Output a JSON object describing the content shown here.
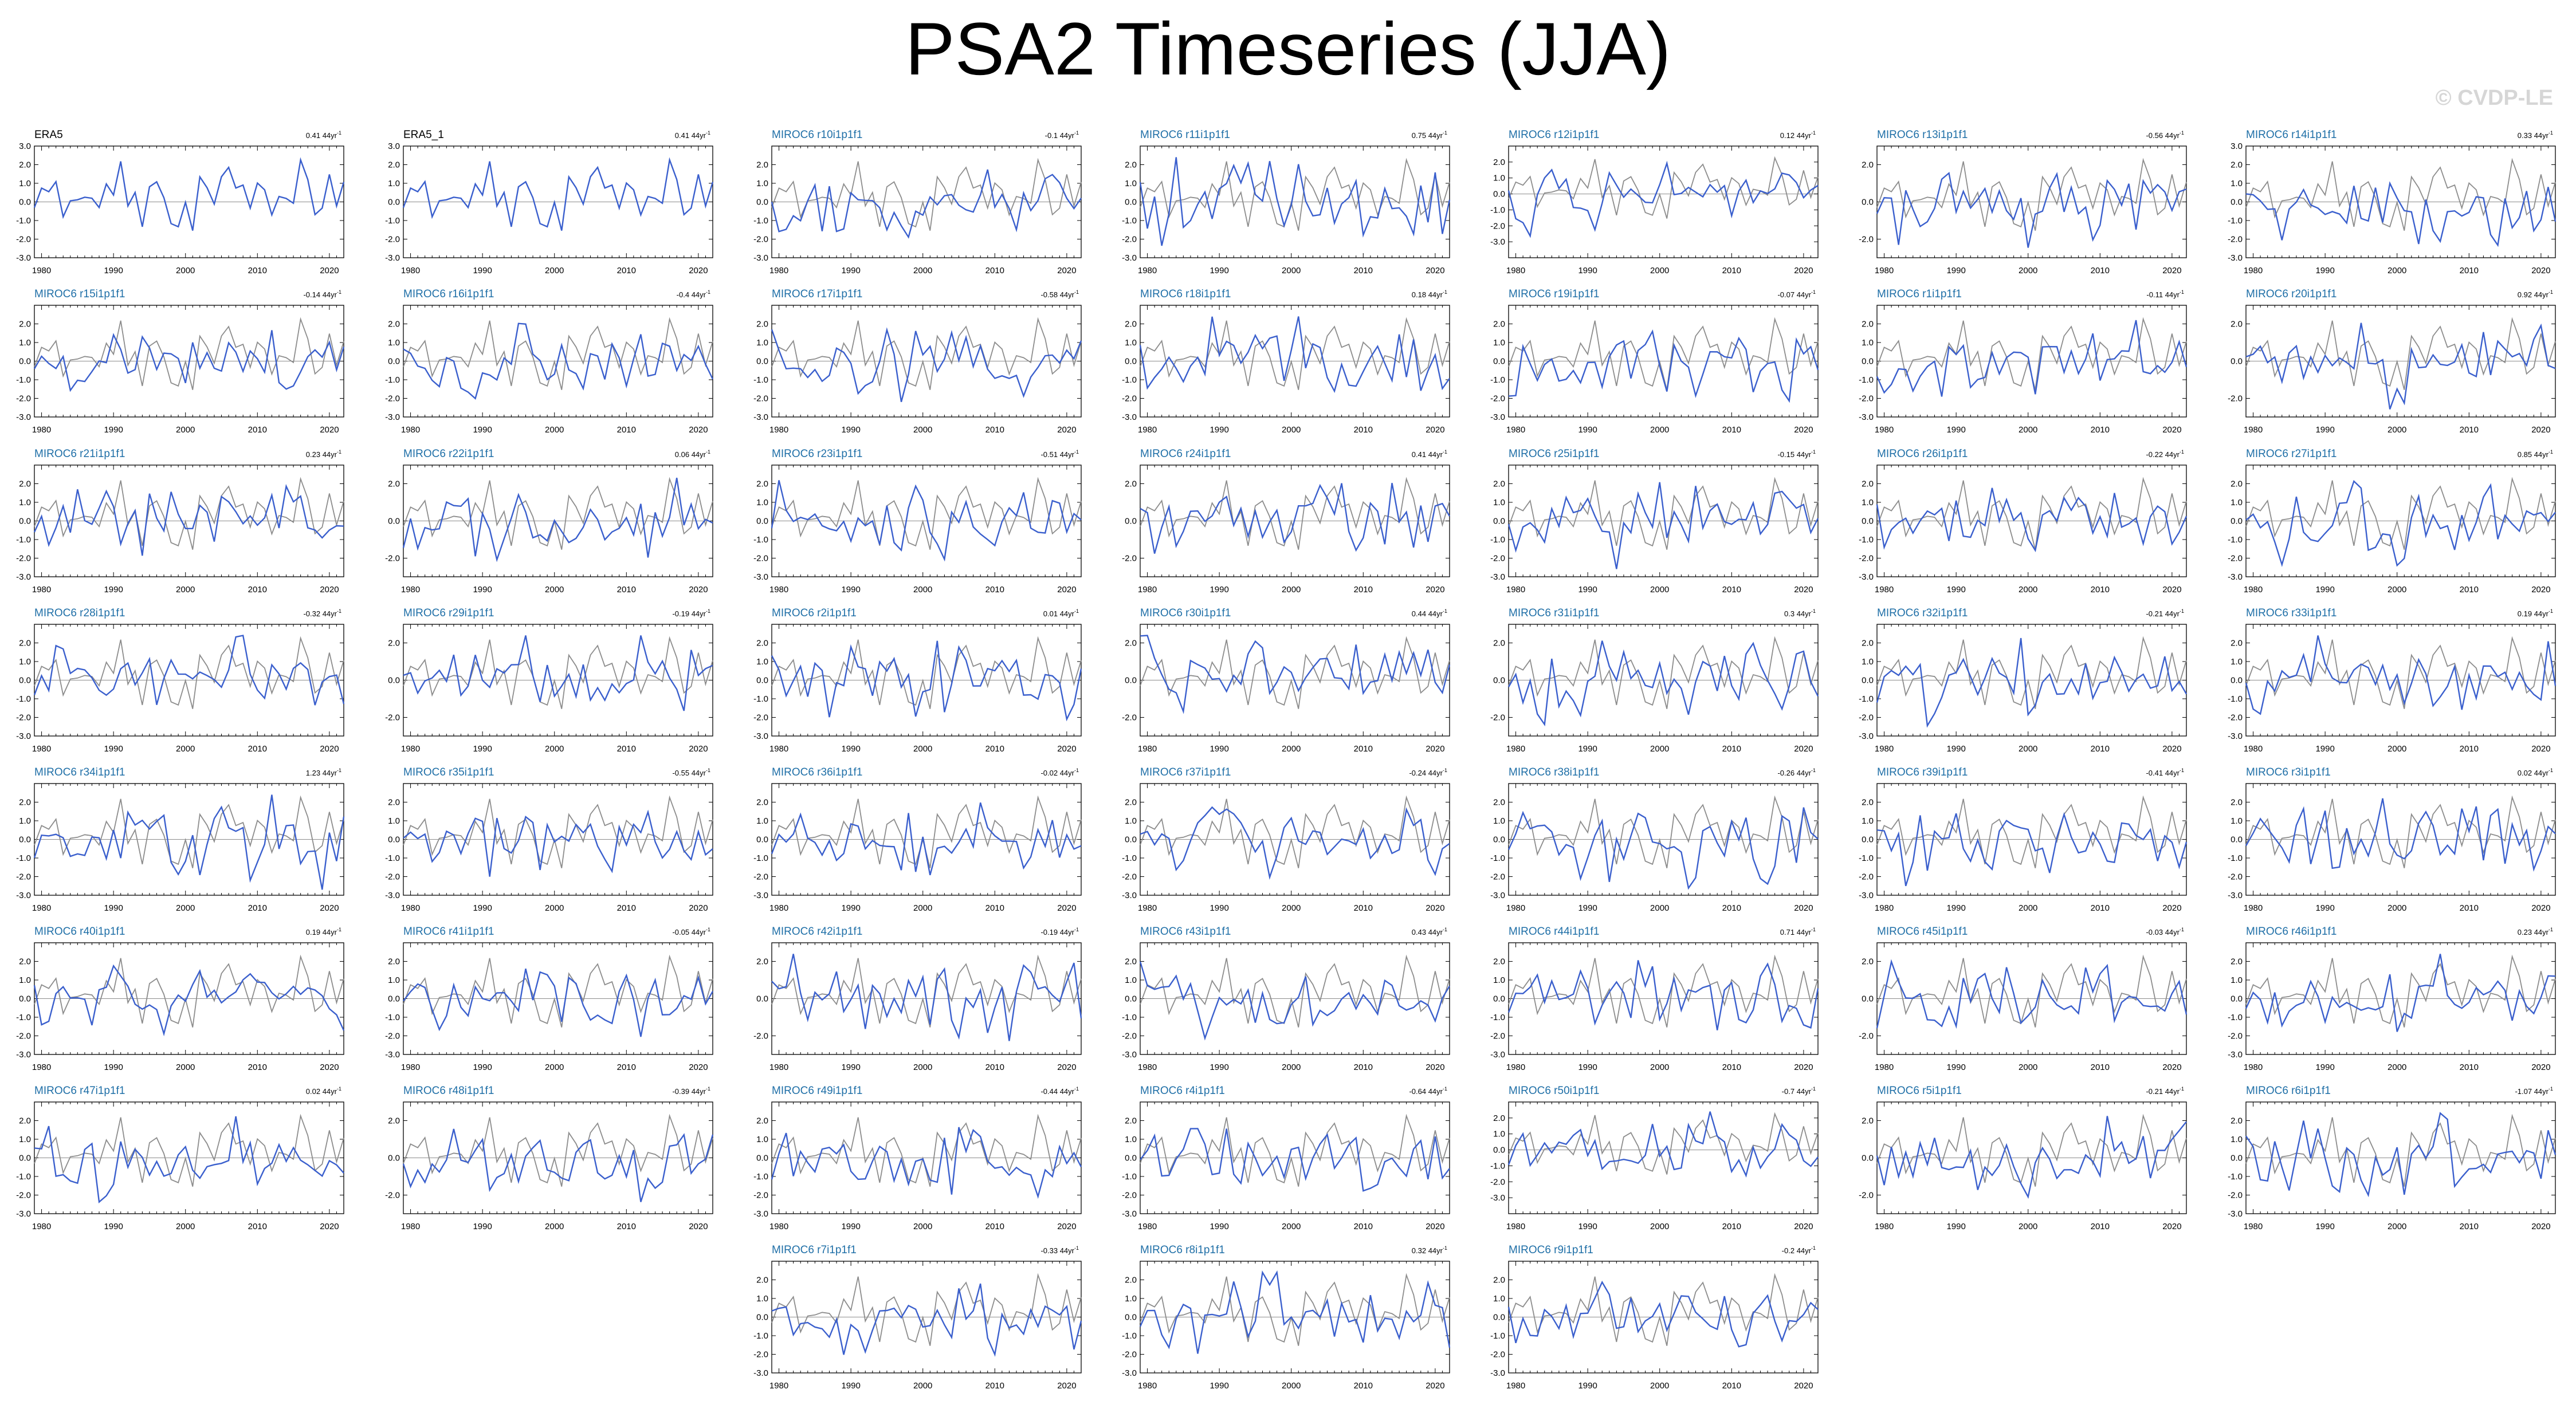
{
  "title": "PSA2 Timeseries (JJA)",
  "watermark": "© CVDP-LE",
  "colors": {
    "primary": "#3a5fcd",
    "reference": "#8c8c8c",
    "zero": "#8c8c8c",
    "obs_title": "#000000",
    "member_title": "#1f6fa7"
  },
  "chart_data": {
    "type": "line",
    "x_ticks": [
      1980,
      1990,
      2000,
      2010,
      2020
    ],
    "xlim": [
      1979,
      2022
    ],
    "trend_unit": "44yr",
    "panels": [
      {
        "title": "ERA5",
        "trend": "0.41",
        "obs": true,
        "ylim": [
          -3,
          3
        ],
        "yticks": [
          "3.0",
          "2.0",
          "1.0",
          "0.0",
          "-1.0",
          "-2.0",
          "-3.0"
        ]
      },
      {
        "title": "ERA5_1",
        "trend": "0.41",
        "obs": true,
        "ylim": [
          -3,
          3
        ],
        "yticks": [
          "3.0",
          "2.0",
          "1.0",
          "0.0",
          "-1.0",
          "-2.0",
          "-3.0"
        ]
      },
      {
        "title": "MIROC6 r10i1p1f1",
        "trend": "-0.1",
        "ylim": [
          -3,
          3
        ],
        "yticks": [
          "2.0",
          "1.0",
          "0.0",
          "-1.0",
          "-2.0",
          "-3.0"
        ]
      },
      {
        "title": "MIROC6 r11i1p1f1",
        "trend": "0.75",
        "ylim": [
          -3,
          3
        ],
        "yticks": [
          "2.0",
          "1.0",
          "0.0",
          "-1.0",
          "-2.0",
          "-3.0"
        ]
      },
      {
        "title": "MIROC6 r12i1p1f1",
        "trend": "0.12",
        "ylim": [
          -4,
          3
        ],
        "yticks": [
          "2.0",
          "1.0",
          "0.0",
          "-1.0",
          "-2.0",
          "-3.0"
        ]
      },
      {
        "title": "MIROC6 r13i1p1f1",
        "trend": "-0.56",
        "ylim": [
          -3,
          3
        ],
        "yticks": [
          "2.0",
          "0.0",
          "-2.0"
        ]
      },
      {
        "title": "MIROC6 r14i1p1f1",
        "trend": "0.33",
        "ylim": [
          -3,
          3
        ],
        "yticks": [
          "3.0",
          "2.0",
          "1.0",
          "0.0",
          "-1.0",
          "-2.0",
          "-3.0"
        ]
      },
      {
        "title": "MIROC6 r15i1p1f1",
        "trend": "-0.14",
        "ylim": [
          -3,
          3
        ],
        "yticks": [
          "2.0",
          "1.0",
          "0.0",
          "-1.0",
          "-2.0",
          "-3.0"
        ]
      },
      {
        "title": "MIROC6 r16i1p1f1",
        "trend": "-0.4",
        "ylim": [
          -3,
          3
        ],
        "yticks": [
          "2.0",
          "1.0",
          "0.0",
          "-1.0",
          "-2.0",
          "-3.0"
        ]
      },
      {
        "title": "MIROC6 r17i1p1f1",
        "trend": "-0.58",
        "ylim": [
          -3,
          3
        ],
        "yticks": [
          "2.0",
          "1.0",
          "0.0",
          "-1.0",
          "-2.0",
          "-3.0"
        ]
      },
      {
        "title": "MIROC6 r18i1p1f1",
        "trend": "0.18",
        "ylim": [
          -3,
          3
        ],
        "yticks": [
          "2.0",
          "1.0",
          "0.0",
          "-1.0",
          "-2.0",
          "-3.0"
        ]
      },
      {
        "title": "MIROC6 r19i1p1f1",
        "trend": "-0.07",
        "ylim": [
          -3,
          3
        ],
        "yticks": [
          "2.0",
          "1.0",
          "0.0",
          "-1.0",
          "-2.0",
          "-3.0"
        ]
      },
      {
        "title": "MIROC6 r1i1p1f1",
        "trend": "-0.11",
        "ylim": [
          -3,
          3
        ],
        "yticks": [
          "2.0",
          "1.0",
          "0.0",
          "-1.0",
          "-2.0",
          "-3.0"
        ]
      },
      {
        "title": "MIROC6 r20i1p1f1",
        "trend": "0.92",
        "ylim": [
          -3,
          3
        ],
        "yticks": [
          "2.0",
          "0.0",
          "-2.0"
        ]
      },
      {
        "title": "MIROC6 r21i1p1f1",
        "trend": "0.23",
        "ylim": [
          -3,
          3
        ],
        "yticks": [
          "2.0",
          "1.0",
          "0.0",
          "-1.0",
          "-2.0",
          "-3.0"
        ]
      },
      {
        "title": "MIROC6 r22i1p1f1",
        "trend": "0.06",
        "ylim": [
          -3,
          3
        ],
        "yticks": [
          "2.0",
          "0.0",
          "-2.0"
        ]
      },
      {
        "title": "MIROC6 r23i1p1f1",
        "trend": "-0.51",
        "ylim": [
          -3,
          3
        ],
        "yticks": [
          "2.0",
          "1.0",
          "0.0",
          "-1.0",
          "-2.0",
          "-3.0"
        ]
      },
      {
        "title": "MIROC6 r24i1p1f1",
        "trend": "0.41",
        "ylim": [
          -3,
          3
        ],
        "yticks": [
          "2.0",
          "0.0",
          "-2.0"
        ]
      },
      {
        "title": "MIROC6 r25i1p1f1",
        "trend": "-0.15",
        "ylim": [
          -3,
          3
        ],
        "yticks": [
          "2.0",
          "1.0",
          "0.0",
          "-1.0",
          "-2.0",
          "-3.0"
        ]
      },
      {
        "title": "MIROC6 r26i1p1f1",
        "trend": "-0.22",
        "ylim": [
          -3,
          3
        ],
        "yticks": [
          "2.0",
          "1.0",
          "0.0",
          "-1.0",
          "-2.0",
          "-3.0"
        ]
      },
      {
        "title": "MIROC6 r27i1p1f1",
        "trend": "0.85",
        "ylim": [
          -3,
          3
        ],
        "yticks": [
          "2.0",
          "1.0",
          "0.0",
          "-1.0",
          "-2.0",
          "-3.0"
        ]
      },
      {
        "title": "MIROC6 r28i1p1f1",
        "trend": "-0.32",
        "ylim": [
          -3,
          3
        ],
        "yticks": [
          "2.0",
          "1.0",
          "0.0",
          "-1.0",
          "-2.0",
          "-3.0"
        ]
      },
      {
        "title": "MIROC6 r29i1p1f1",
        "trend": "-0.19",
        "ylim": [
          -3,
          3
        ],
        "yticks": [
          "2.0",
          "0.0",
          "-2.0"
        ]
      },
      {
        "title": "MIROC6 r2i1p1f1",
        "trend": "0.01",
        "ylim": [
          -3,
          3
        ],
        "yticks": [
          "2.0",
          "1.0",
          "0.0",
          "-1.0",
          "-2.0",
          "-3.0"
        ]
      },
      {
        "title": "MIROC6 r30i1p1f1",
        "trend": "0.44",
        "ylim": [
          -3,
          3
        ],
        "yticks": [
          "2.0",
          "0.0",
          "-2.0"
        ]
      },
      {
        "title": "MIROC6 r31i1p1f1",
        "trend": "0.3",
        "ylim": [
          -3,
          3
        ],
        "yticks": [
          "2.0",
          "0.0",
          "-2.0"
        ]
      },
      {
        "title": "MIROC6 r32i1p1f1",
        "trend": "-0.21",
        "ylim": [
          -3,
          3
        ],
        "yticks": [
          "2.0",
          "1.0",
          "0.0",
          "-1.0",
          "-2.0",
          "-3.0"
        ]
      },
      {
        "title": "MIROC6 r33i1p1f1",
        "trend": "0.19",
        "ylim": [
          -3,
          3
        ],
        "yticks": [
          "2.0",
          "1.0",
          "0.0",
          "-1.0",
          "-2.0",
          "-3.0"
        ]
      },
      {
        "title": "MIROC6 r34i1p1f1",
        "trend": "1.23",
        "ylim": [
          -3,
          3
        ],
        "yticks": [
          "2.0",
          "1.0",
          "0.0",
          "-1.0",
          "-2.0",
          "-3.0"
        ]
      },
      {
        "title": "MIROC6 r35i1p1f1",
        "trend": "-0.55",
        "ylim": [
          -3,
          3
        ],
        "yticks": [
          "2.0",
          "1.0",
          "0.0",
          "-1.0",
          "-2.0",
          "-3.0"
        ]
      },
      {
        "title": "MIROC6 r36i1p1f1",
        "trend": "-0.02",
        "ylim": [
          -3,
          3
        ],
        "yticks": [
          "2.0",
          "1.0",
          "0.0",
          "-1.0",
          "-2.0",
          "-3.0"
        ]
      },
      {
        "title": "MIROC6 r37i1p1f1",
        "trend": "-0.24",
        "ylim": [
          -3,
          3
        ],
        "yticks": [
          "2.0",
          "1.0",
          "0.0",
          "-1.0",
          "-2.0",
          "-3.0"
        ]
      },
      {
        "title": "MIROC6 r38i1p1f1",
        "trend": "-0.26",
        "ylim": [
          -3,
          3
        ],
        "yticks": [
          "2.0",
          "1.0",
          "0.0",
          "-1.0",
          "-2.0",
          "-3.0"
        ]
      },
      {
        "title": "MIROC6 r39i1p1f1",
        "trend": "-0.41",
        "ylim": [
          -3,
          3
        ],
        "yticks": [
          "2.0",
          "1.0",
          "0.0",
          "-1.0",
          "-2.0",
          "-3.0"
        ]
      },
      {
        "title": "MIROC6 r3i1p1f1",
        "trend": "0.02",
        "ylim": [
          -3,
          3
        ],
        "yticks": [
          "2.0",
          "1.0",
          "0.0",
          "-1.0",
          "-2.0",
          "-3.0"
        ]
      },
      {
        "title": "MIROC6 r40i1p1f1",
        "trend": "0.19",
        "ylim": [
          -3,
          3
        ],
        "yticks": [
          "2.0",
          "1.0",
          "0.0",
          "-1.0",
          "-2.0",
          "-3.0"
        ]
      },
      {
        "title": "MIROC6 r41i1p1f1",
        "trend": "-0.05",
        "ylim": [
          -3,
          3
        ],
        "yticks": [
          "2.0",
          "1.0",
          "0.0",
          "-1.0",
          "-2.0",
          "-3.0"
        ]
      },
      {
        "title": "MIROC6 r42i1p1f1",
        "trend": "-0.19",
        "ylim": [
          -3,
          3
        ],
        "yticks": [
          "2.0",
          "0.0",
          "-2.0"
        ]
      },
      {
        "title": "MIROC6 r43i1p1f1",
        "trend": "0.43",
        "ylim": [
          -3,
          3
        ],
        "yticks": [
          "2.0",
          "1.0",
          "0.0",
          "-1.0",
          "-2.0",
          "-3.0"
        ]
      },
      {
        "title": "MIROC6 r44i1p1f1",
        "trend": "0.71",
        "ylim": [
          -3,
          3
        ],
        "yticks": [
          "2.0",
          "1.0",
          "0.0",
          "-1.0",
          "-2.0",
          "-3.0"
        ]
      },
      {
        "title": "MIROC6 r45i1p1f1",
        "trend": "-0.03",
        "ylim": [
          -3,
          3
        ],
        "yticks": [
          "2.0",
          "0.0",
          "-2.0"
        ]
      },
      {
        "title": "MIROC6 r46i1p1f1",
        "trend": "0.23",
        "ylim": [
          -3,
          3
        ],
        "yticks": [
          "2.0",
          "1.0",
          "0.0",
          "-1.0",
          "-2.0",
          "-3.0"
        ]
      },
      {
        "title": "MIROC6 r47i1p1f1",
        "trend": "0.02",
        "ylim": [
          -3,
          3
        ],
        "yticks": [
          "2.0",
          "1.0",
          "0.0",
          "-1.0",
          "-2.0",
          "-3.0"
        ]
      },
      {
        "title": "MIROC6 r48i1p1f1",
        "trend": "-0.39",
        "ylim": [
          -3,
          3
        ],
        "yticks": [
          "2.0",
          "0.0",
          "-2.0"
        ]
      },
      {
        "title": "MIROC6 r49i1p1f1",
        "trend": "-0.44",
        "ylim": [
          -3,
          3
        ],
        "yticks": [
          "2.0",
          "1.0",
          "0.0",
          "-1.0",
          "-2.0",
          "-3.0"
        ]
      },
      {
        "title": "MIROC6 r4i1p1f1",
        "trend": "-0.64",
        "ylim": [
          -3,
          3
        ],
        "yticks": [
          "2.0",
          "1.0",
          "0.0",
          "-1.0",
          "-2.0",
          "-3.0"
        ]
      },
      {
        "title": "MIROC6 r50i1p1f1",
        "trend": "-0.7",
        "ylim": [
          -4,
          3
        ],
        "yticks": [
          "2.0",
          "1.0",
          "0.0",
          "-1.0",
          "-2.0",
          "-3.0"
        ]
      },
      {
        "title": "MIROC6 r5i1p1f1",
        "trend": "-0.21",
        "ylim": [
          -3,
          3
        ],
        "yticks": [
          "2.0",
          "0.0",
          "-2.0"
        ]
      },
      {
        "title": "MIROC6 r6i1p1f1",
        "trend": "-1.07",
        "ylim": [
          -3,
          3
        ],
        "yticks": [
          "2.0",
          "1.0",
          "0.0",
          "-1.0",
          "-2.0",
          "-3.0"
        ]
      },
      {
        "title": "MIROC6 r7i1p1f1",
        "trend": "-0.33",
        "ylim": [
          -3,
          3
        ],
        "yticks": [
          "2.0",
          "1.0",
          "0.0",
          "-1.0",
          "-2.0",
          "-3.0"
        ]
      },
      {
        "title": "MIROC6 r8i1p1f1",
        "trend": "0.32",
        "ylim": [
          -3,
          3
        ],
        "yticks": [
          "2.0",
          "1.0",
          "0.0",
          "-1.0",
          "-2.0",
          "-3.0"
        ]
      },
      {
        "title": "MIROC6 r9i1p1f1",
        "trend": "-0.2",
        "ylim": [
          -3,
          3
        ],
        "yticks": [
          "2.0",
          "1.0",
          "0.0",
          "-1.0",
          "-2.0",
          "-3.0"
        ]
      }
    ]
  }
}
